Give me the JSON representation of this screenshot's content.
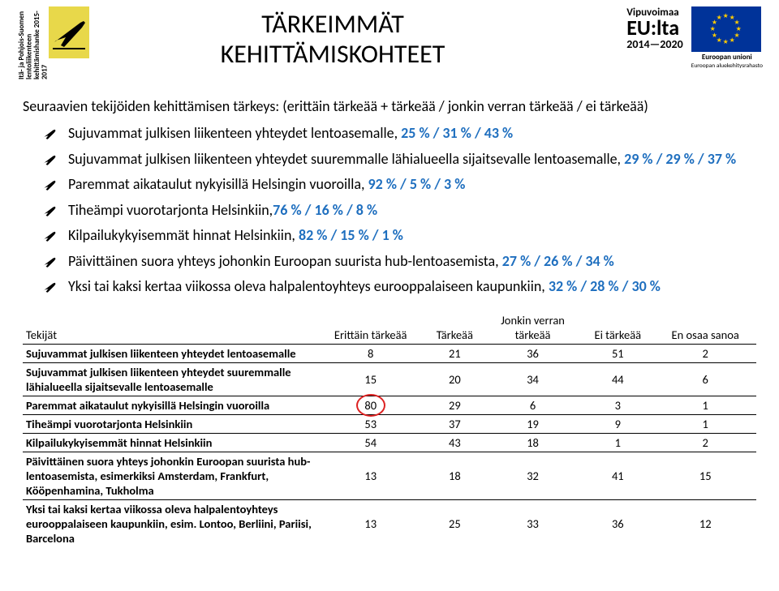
{
  "header": {
    "side_text": "Itä- ja Pohjois-Suomen lentoliikenteen kehittämishanke 2015-2017",
    "title_line1": "TÄRKEIMMÄT",
    "title_line2": "KEHITTÄMISKOHTEET",
    "vip_top": "Vipuvoimaa",
    "vip_eu": "EU:lta",
    "vip_years": "2014—2020",
    "eu_label1": "Euroopan unioni",
    "eu_label2": "Euroopan aluekehitysrahasto"
  },
  "intro": "Seuraavien tekijöiden kehittämisen tärkeys: (erittäin tärkeää + tärkeää / jonkin verran tärkeää / ei tärkeää)",
  "bullets": [
    {
      "pre": "Sujuvammat julkisen liikenteen yhteydet lentoasemalle, ",
      "hl": "25 % / 31 % / 43 %"
    },
    {
      "pre": "Sujuvammat julkisen liikenteen yhteydet suuremmalle lähialueella sijaitsevalle lentoasemalle, ",
      "hl": "29 % / 29 % / 37 %"
    },
    {
      "pre": "Paremmat aikataulut nykyisillä Helsingin vuoroilla, ",
      "hl": "92 % / 5 % / 3 %"
    },
    {
      "pre": "Tiheämpi vuorotarjonta Helsinkiin,",
      "hl": "76 % / 16 % / 8 %"
    },
    {
      "pre": "Kilpailukykyisemmät hinnat Helsinkiin, ",
      "hl": "82 % / 15 % / 1 %"
    },
    {
      "pre": "Päivittäinen suora yhteys johonkin Euroopan suurista hub-lentoasemista, ",
      "hl": "27 % / 26 % / 34 %"
    },
    {
      "pre": "Yksi tai kaksi kertaa viikossa oleva halpalentoyhteys eurooppalaiseen kaupunkiin, ",
      "hl": "32 % / 28 % / 30 %"
    }
  ],
  "table": {
    "headers": [
      "Tekijät",
      "Erittäin tärkeää",
      "Tärkeää",
      "Jonkin verran tärkeää",
      "Ei tärkeää",
      "En osaa sanoa"
    ],
    "rows": [
      {
        "label": "Sujuvammat julkisen liikenteen yhteydet lentoasemalle",
        "v": [
          "8",
          "21",
          "36",
          "51",
          "2"
        ]
      },
      {
        "label": "Sujuvammat julkisen liikenteen yhteydet suuremmalle lähialueella sijaitsevalle lentoasemalle",
        "v": [
          "15",
          "20",
          "34",
          "44",
          "6"
        ]
      },
      {
        "label": "Paremmat aikataulut nykyisillä Helsingin vuoroilla",
        "v": [
          "80",
          "29",
          "6",
          "3",
          "1"
        ],
        "circle": 0
      },
      {
        "label": "Tiheämpi vuorotarjonta Helsinkiin",
        "v": [
          "53",
          "37",
          "19",
          "9",
          "1"
        ]
      },
      {
        "label": "Kilpailukykyisemmät hinnat Helsinkiin",
        "v": [
          "54",
          "43",
          "18",
          "1",
          "2"
        ]
      },
      {
        "label": "Päivittäinen suora yhteys johonkin Euroopan suurista hub-lentoasemista, esimerkiksi Amsterdam, Frankfurt, Kööpenhamina, Tukholma",
        "v": [
          "13",
          "18",
          "32",
          "41",
          "15"
        ]
      },
      {
        "label": "Yksi tai kaksi kertaa viikossa oleva halpalentoyhteys eurooppalaiseen kaupunkiin, esim. Lontoo, Berliini, Pariisi, Barcelona",
        "v": [
          "13",
          "25",
          "33",
          "36",
          "12"
        ]
      }
    ]
  },
  "colors": {
    "bullet_highlight": "#1f6fbf",
    "logo_bg": "#e8d84a",
    "eu_flag_bg": "#003399",
    "eu_star": "#ffcc00",
    "circle": "#d22"
  }
}
